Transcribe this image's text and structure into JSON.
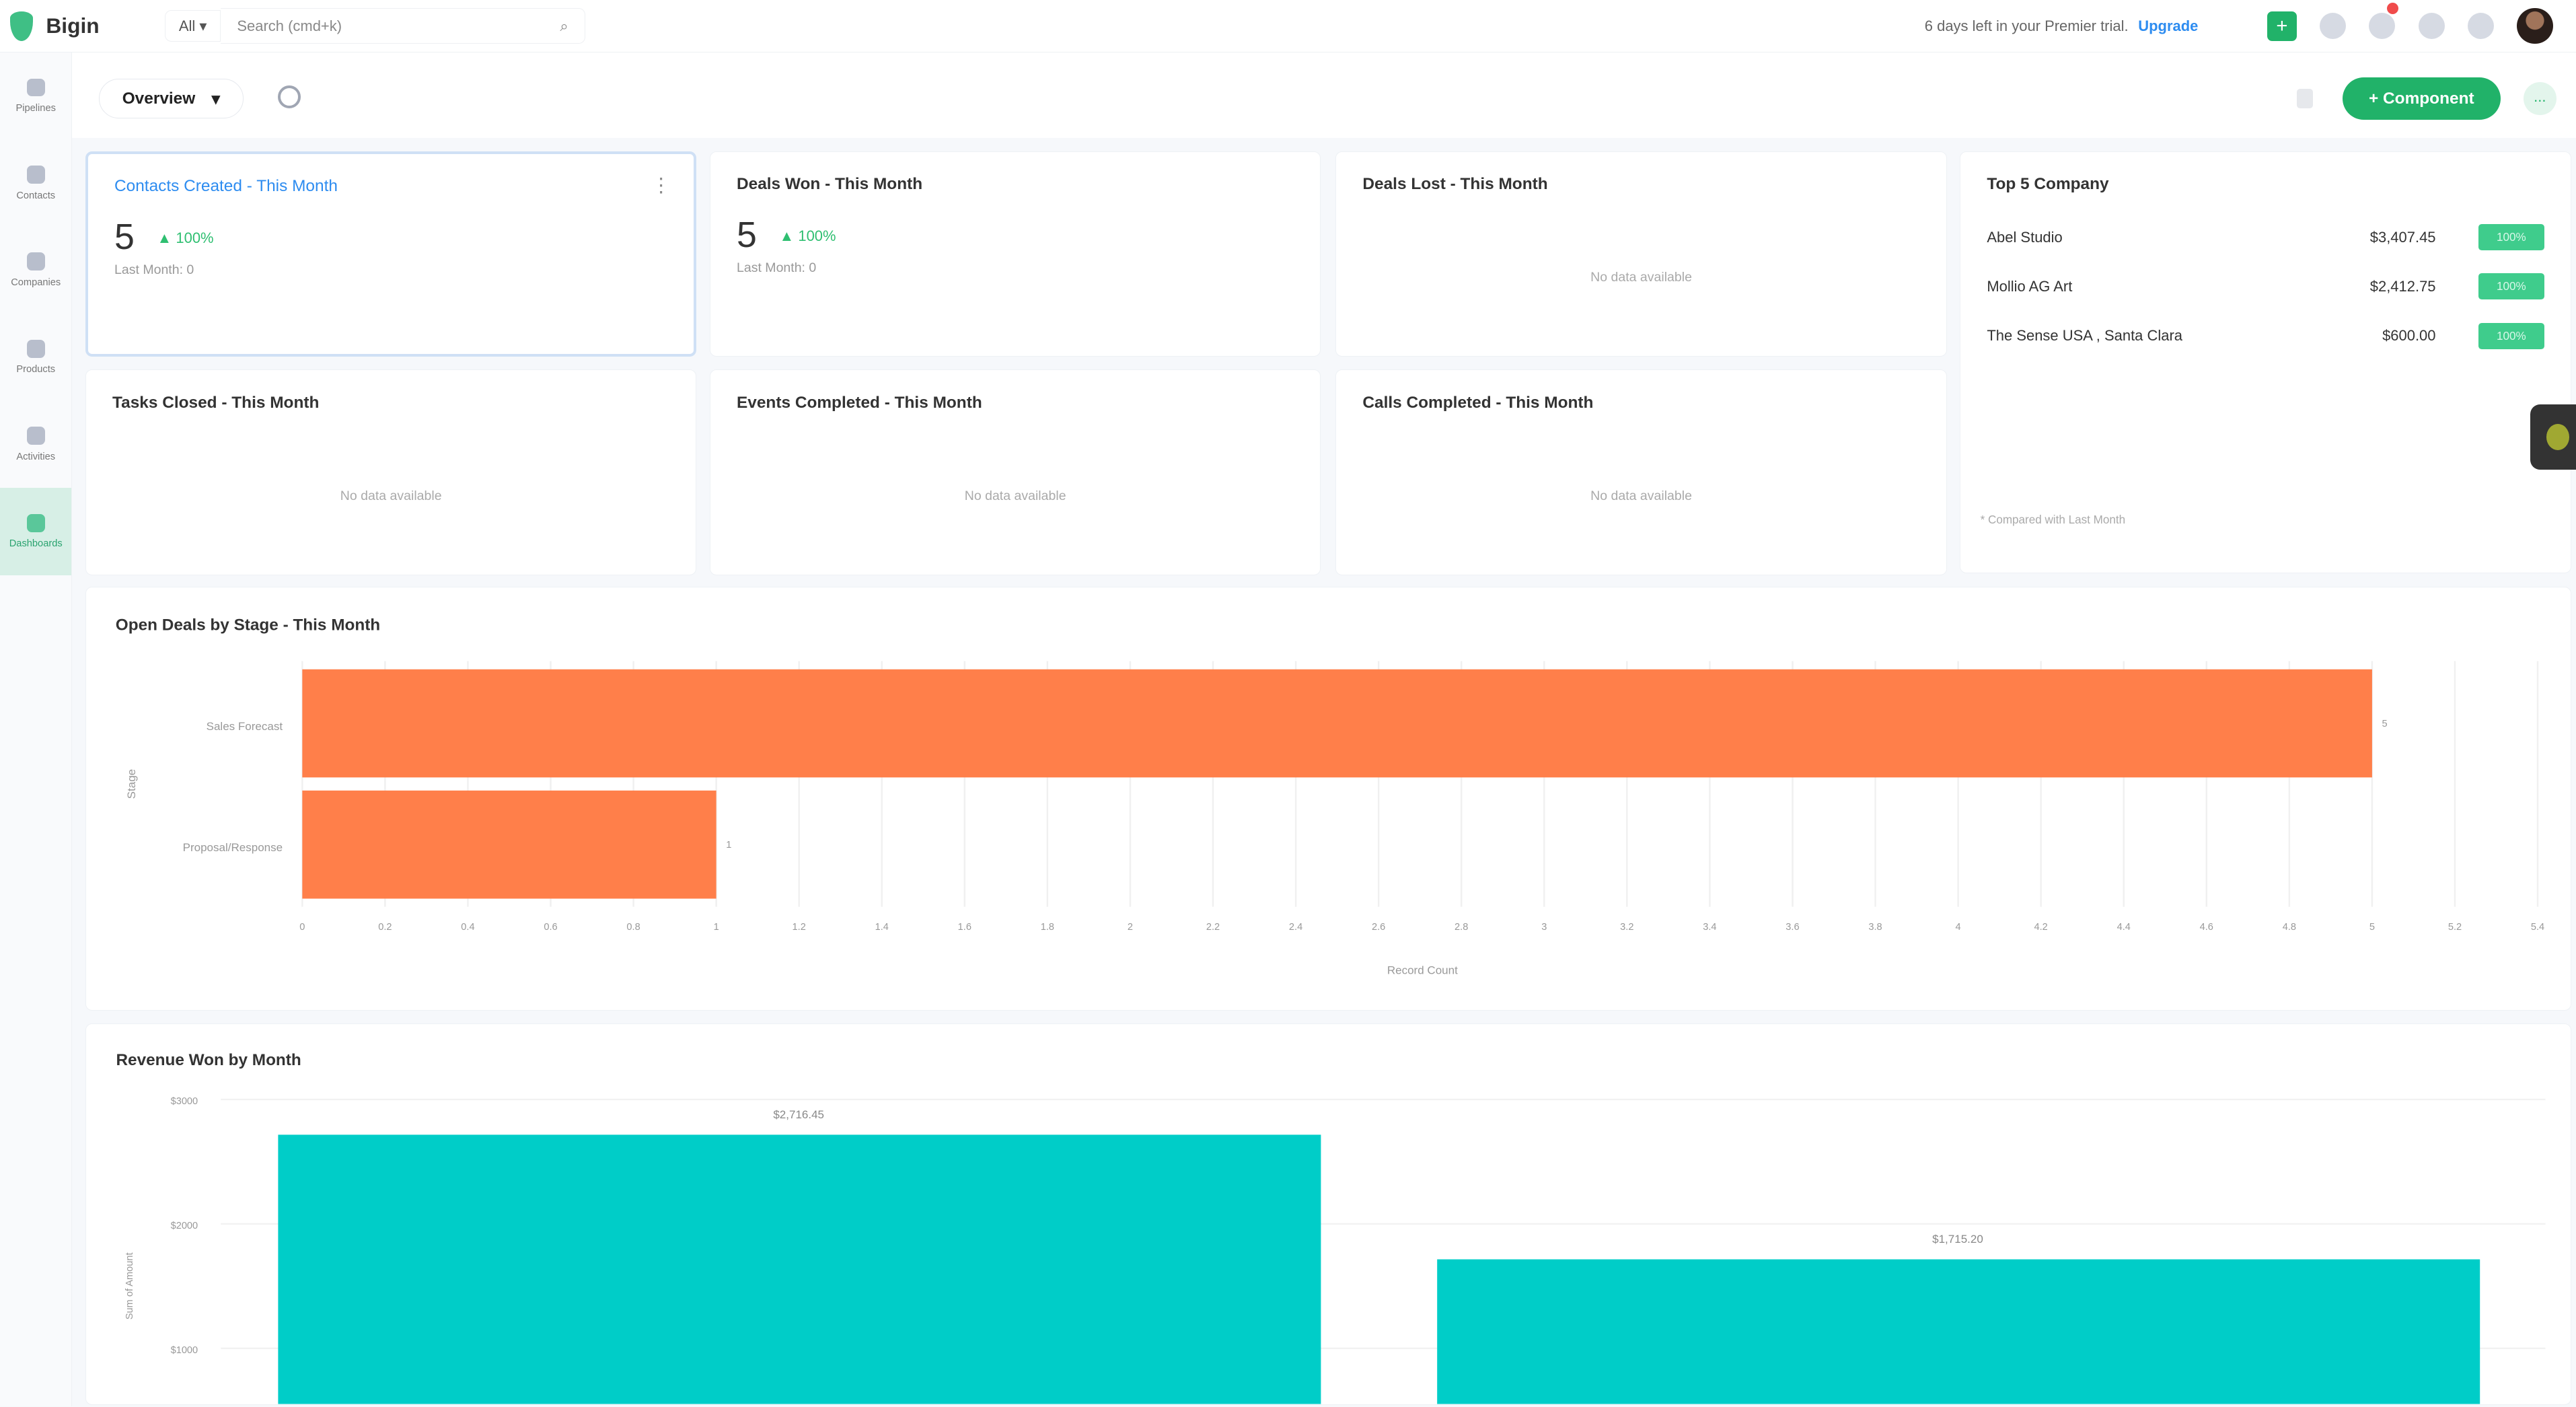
{
  "topbar": {
    "brand": "Bigin",
    "scope": "All",
    "search_placeholder": "Search (cmd+k)",
    "trial_text": "6 days left in your Premier trial.",
    "upgrade": "Upgrade"
  },
  "sidebar": {
    "items": [
      {
        "label": "Pipelines"
      },
      {
        "label": "Contacts"
      },
      {
        "label": "Companies"
      },
      {
        "label": "Products"
      },
      {
        "label": "Activities"
      },
      {
        "label": "Dashboards",
        "active": true
      }
    ]
  },
  "toolbar": {
    "view": "Overview",
    "component_button": "+ Component",
    "more": "..."
  },
  "cards": [
    {
      "title": "Contacts Created - This Month",
      "value": "5",
      "change": "▲ 100%",
      "last": "Last Month: 0"
    },
    {
      "title": "Deals Won - This Month",
      "value": "5",
      "change": "▲ 100%",
      "last": "Last Month: 0"
    },
    {
      "title": "Deals Lost - This Month",
      "empty": "No data available"
    },
    {
      "title": "Tasks Closed - This Month",
      "empty": "No data available"
    },
    {
      "title": "Events Completed - This Month",
      "empty": "No data available"
    },
    {
      "title": "Calls Completed - This Month",
      "empty": "No data available"
    }
  ],
  "top_company": {
    "title": "Top 5 Company",
    "rows": [
      {
        "name": "Abel Studio",
        "amount": "$3,407.45",
        "badge": "100%"
      },
      {
        "name": "Mollio AG Art",
        "amount": "$2,412.75",
        "badge": "100%"
      },
      {
        "name": "The Sense USA , Santa Clara",
        "amount": "$600.00",
        "badge": "100%"
      }
    ],
    "footnote": "* Compared with Last Month"
  },
  "colors": {
    "accent": "#21b269",
    "bar_stage": "#ff7f4a",
    "bar_revenue": "#00cdc8",
    "link": "#2d8cf0"
  },
  "chart_data": [
    {
      "type": "bar",
      "orientation": "horizontal",
      "title": "Open Deals by Stage - This Month",
      "categories": [
        "Sales Forecast",
        "Proposal/Response"
      ],
      "values": [
        5,
        1
      ],
      "xlabel": "Record Count",
      "ylabel": "Stage",
      "xlim": [
        0,
        5.4
      ],
      "xticks": [
        "0",
        "0.2",
        "0.4",
        "0.6",
        "0.8",
        "1",
        "1.2",
        "1.4",
        "1.6",
        "1.8",
        "2",
        "2.2",
        "2.4",
        "2.6",
        "2.8",
        "3",
        "3.2",
        "3.4",
        "3.6",
        "3.8",
        "4",
        "4.2",
        "4.4",
        "4.6",
        "4.8",
        "5",
        "5.2",
        "5.4"
      ],
      "grid": true
    },
    {
      "type": "bar",
      "title": "Revenue Won by Month",
      "values": [
        2716.45,
        1715.2
      ],
      "value_labels": [
        "$2,716.45",
        "$1,715.20"
      ],
      "ylabel": "Sum of Amount",
      "yticks": [
        "$3000",
        "$2000",
        "$1000"
      ],
      "ytick_values": [
        3000,
        2000,
        1000
      ],
      "grid": true
    }
  ]
}
